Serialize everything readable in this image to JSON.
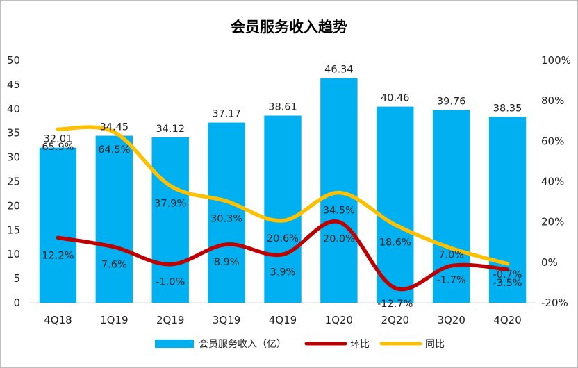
{
  "chart_data": {
    "type": "bar",
    "title": "会员服务收入趋势",
    "categories": [
      "4Q18",
      "1Q19",
      "2Q19",
      "3Q19",
      "4Q19",
      "1Q20",
      "2Q20",
      "3Q20",
      "4Q20"
    ],
    "series": [
      {
        "name": "会员服务收入（亿）",
        "type": "bar",
        "axis": "left",
        "color": "#00B0F0",
        "values": [
          32.01,
          34.45,
          34.12,
          37.17,
          38.61,
          46.34,
          40.46,
          39.76,
          38.35
        ],
        "labels": [
          "32.01",
          "34.45",
          "34.12",
          "37.17",
          "38.61",
          "46.34",
          "40.46",
          "39.76",
          "38.35"
        ]
      },
      {
        "name": "环比",
        "type": "line",
        "axis": "right",
        "color": "#C00000",
        "values": [
          12.2,
          7.6,
          -1.0,
          8.9,
          3.9,
          20.0,
          -12.7,
          -1.7,
          -3.5
        ],
        "labels": [
          "12.2%",
          "7.6%",
          "-1.0%",
          "8.9%",
          "3.9%",
          "20.0%",
          "-12.7%",
          "-1.7%",
          "-3.5%"
        ]
      },
      {
        "name": "同比",
        "type": "line",
        "axis": "right",
        "color": "#FFC000",
        "values": [
          65.9,
          64.5,
          37.9,
          30.3,
          20.6,
          34.5,
          18.6,
          7.0,
          -0.7
        ],
        "labels": [
          "65.9%",
          "64.5%",
          "37.9%",
          "30.3%",
          "20.6%",
          "34.5%",
          "18.6%",
          "7.0%",
          "-0.7%"
        ]
      }
    ],
    "y_left": {
      "range": [
        0,
        50
      ],
      "ticks": [
        "0",
        "5",
        "10",
        "15",
        "20",
        "25",
        "30",
        "35",
        "40",
        "45",
        "50"
      ]
    },
    "y_right": {
      "range": [
        -20,
        100
      ],
      "ticks": [
        "-20%",
        "0%",
        "20%",
        "40%",
        "60%",
        "80%",
        "100%"
      ]
    },
    "legend_position": "bottom",
    "grid": false
  }
}
